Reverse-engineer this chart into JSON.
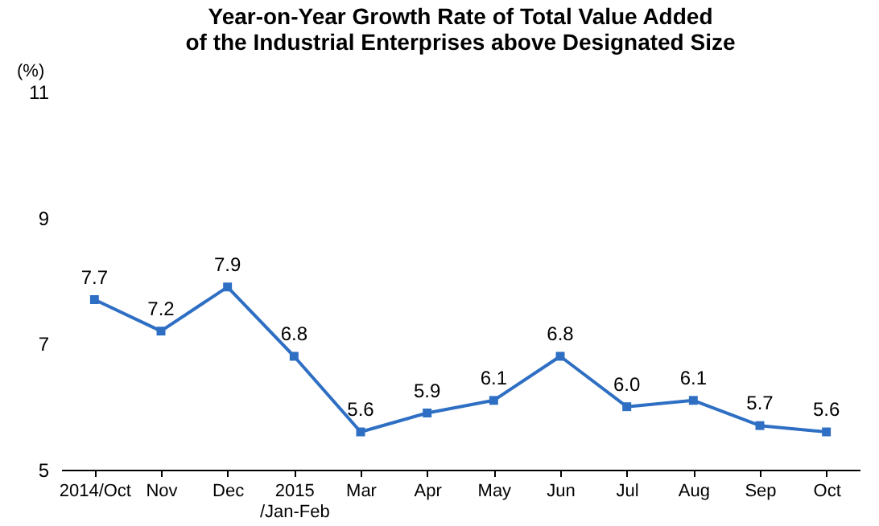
{
  "chart_data": {
    "type": "line",
    "title": [
      "Year-on-Year Growth Rate of Total Value Added",
      "of the Industrial Enterprises above Designated Size"
    ],
    "ylabel": "(%)",
    "categories": [
      "2014/Oct",
      "Nov",
      "Dec",
      "2015\n/Jan-Feb",
      "Mar",
      "Apr",
      "May",
      "Jun",
      "Jul",
      "Aug",
      "Sep",
      "Oct"
    ],
    "series": [
      {
        "color": "#2e6fc4",
        "values": [
          7.7,
          7.2,
          7.9,
          6.8,
          5.6,
          5.9,
          6.1,
          6.8,
          6.0,
          6.1,
          5.7,
          5.6
        ],
        "value_labels": [
          "7.7",
          "7.2",
          "7.9",
          "6.8",
          "5.6",
          "5.9",
          "6.1",
          "6.8",
          "6.0",
          "6.1",
          "5.7",
          "5.6"
        ]
      }
    ],
    "ylim": [
      5,
      11
    ],
    "yticks": [
      5,
      7,
      9,
      11
    ],
    "grid": false,
    "marker": "square",
    "line_style": "solid"
  }
}
